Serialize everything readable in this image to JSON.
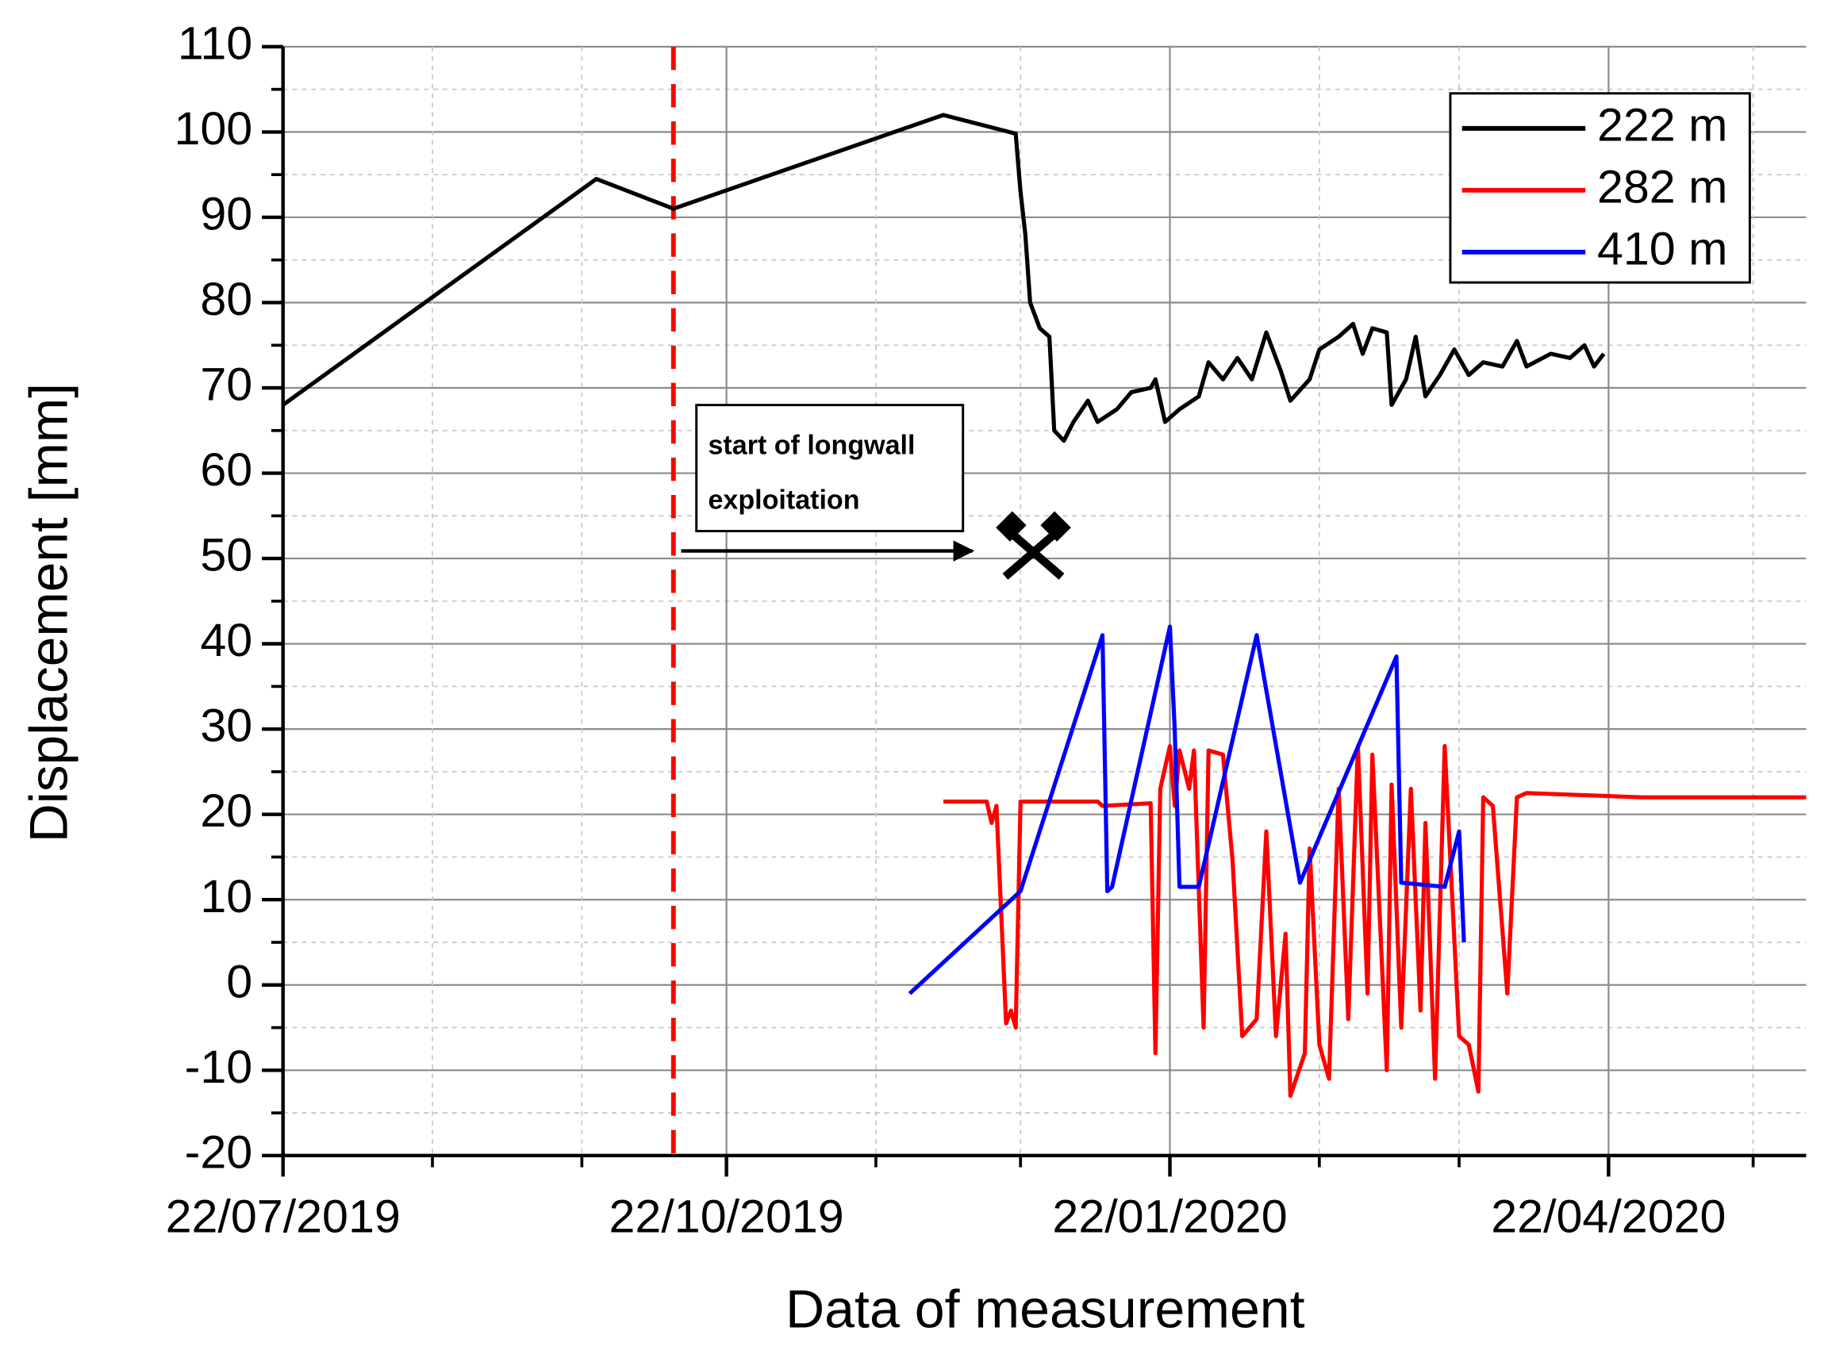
{
  "chart_data": {
    "type": "line",
    "x_label": "Data of measurement",
    "y_label": "Displacement [mm]",
    "xlim": [
      "2019-07-22",
      "2020-06-02"
    ],
    "xticks": [
      {
        "value": "2019-07-22",
        "label": "22/07/2019"
      },
      {
        "value": "2019-10-22",
        "label": "22/10/2019"
      },
      {
        "value": "2020-01-22",
        "label": "22/01/2020"
      },
      {
        "value": "2020-04-22",
        "label": "22/04/2020"
      }
    ],
    "xminor_ticks": [
      "2019-08-22",
      "2019-09-22",
      "2019-11-22",
      "2019-12-22",
      "2020-02-22",
      "2020-03-22",
      "2020-05-22"
    ],
    "ylim": [
      -20,
      110
    ],
    "yticks": [
      -20,
      -10,
      0,
      10,
      20,
      30,
      40,
      50,
      60,
      70,
      80,
      90,
      100,
      110
    ],
    "yminor_ticks": [
      -15,
      -5,
      5,
      15,
      25,
      35,
      45,
      55,
      65,
      75,
      85,
      95,
      105
    ],
    "grid": true,
    "legend": "top-right",
    "vline": {
      "x": "2019-10-11",
      "color": "#ff0000"
    },
    "annotation": {
      "lines": [
        "start of longwall",
        "exploitation"
      ]
    },
    "series": [
      {
        "name": "222 m",
        "color": "#000000",
        "x": [
          "2019-07-22",
          "2019-09-25",
          "2019-10-11",
          "2019-12-06",
          "2019-12-21",
          "2019-12-22",
          "2019-12-23",
          "2019-12-24",
          "2019-12-26",
          "2019-12-28",
          "2019-12-29",
          "2019-12-31",
          "2020-01-02",
          "2020-01-05",
          "2020-01-07",
          "2020-01-11",
          "2020-01-14",
          "2020-01-18",
          "2020-01-19",
          "2020-01-21",
          "2020-01-24",
          "2020-01-28",
          "2020-01-30",
          "2020-02-02",
          "2020-02-05",
          "2020-02-08",
          "2020-02-11",
          "2020-02-14",
          "2020-02-16",
          "2020-02-20",
          "2020-02-22",
          "2020-02-26",
          "2020-02-29",
          "2020-03-02",
          "2020-03-04",
          "2020-03-07",
          "2020-03-08",
          "2020-03-11",
          "2020-03-13",
          "2020-03-15",
          "2020-03-18",
          "2020-03-21",
          "2020-03-24",
          "2020-03-27",
          "2020-03-31",
          "2020-04-03",
          "2020-04-05",
          "2020-04-10",
          "2020-04-14",
          "2020-04-17",
          "2020-04-19",
          "2020-04-21"
        ],
        "values": [
          68,
          94.5,
          91,
          102,
          99.8,
          93,
          88,
          80,
          77,
          76,
          65,
          63.8,
          66,
          68.5,
          66,
          67.5,
          69.5,
          70,
          71,
          66,
          67.5,
          69,
          73,
          71,
          73.5,
          71,
          76.5,
          72,
          68.5,
          71,
          74.5,
          76,
          77.5,
          74,
          77,
          76.5,
          68,
          71,
          76,
          69,
          71.5,
          74.5,
          71.5,
          73,
          72.5,
          75.5,
          72.5,
          74,
          73.5,
          75,
          72.5,
          74
        ]
      },
      {
        "name": "282 m",
        "color": "#ff0000",
        "x": [
          "2019-12-06",
          "2019-12-15",
          "2019-12-16",
          "2019-12-17",
          "2019-12-19",
          "2019-12-20",
          "2019-12-21",
          "2019-12-22",
          "2020-01-07",
          "2020-01-08",
          "2020-01-18",
          "2020-01-19",
          "2020-01-20",
          "2020-01-22",
          "2020-01-23",
          "2020-01-24",
          "2020-01-26",
          "2020-01-27",
          "2020-01-29",
          "2020-01-30",
          "2020-02-02",
          "2020-02-04",
          "2020-02-06",
          "2020-02-09",
          "2020-02-11",
          "2020-02-13",
          "2020-02-15",
          "2020-02-16",
          "2020-02-19",
          "2020-02-20",
          "2020-02-22",
          "2020-02-24",
          "2020-02-26",
          "2020-02-28",
          "2020-03-01",
          "2020-03-03",
          "2020-03-04",
          "2020-03-07",
          "2020-03-08",
          "2020-03-10",
          "2020-03-12",
          "2020-03-14",
          "2020-03-15",
          "2020-03-17",
          "2020-03-19",
          "2020-03-22",
          "2020-03-24",
          "2020-03-26",
          "2020-03-27",
          "2020-03-29",
          "2020-04-01",
          "2020-04-03",
          "2020-04-05",
          "2020-04-29",
          "2020-06-02"
        ],
        "values": [
          21.5,
          21.5,
          19,
          21,
          -4.5,
          -3,
          -5,
          21.5,
          21.5,
          21,
          21.3,
          -8,
          23,
          28,
          21,
          27.5,
          23,
          27.5,
          -5,
          27.5,
          27,
          14.5,
          -6,
          -4,
          18,
          -6,
          6,
          -13,
          -8,
          16,
          -7,
          -11,
          23,
          -4,
          28,
          -1,
          27,
          -10,
          23.5,
          -5,
          23,
          -3,
          19,
          -11,
          28,
          -6,
          -7,
          -12.5,
          22,
          21,
          -1,
          22,
          22.5,
          22,
          22
        ]
      },
      {
        "name": "410 m",
        "color": "#0000ff",
        "x": [
          "2019-11-29",
          "2019-12-22",
          "2020-01-08",
          "2020-01-09",
          "2020-01-10",
          "2020-01-22",
          "2020-01-23",
          "2020-01-24",
          "2020-01-28",
          "2020-02-09",
          "2020-02-18",
          "2020-03-09",
          "2020-03-10",
          "2020-03-19",
          "2020-03-22",
          "2020-03-23"
        ],
        "values": [
          -1,
          11,
          41,
          11,
          11.5,
          42,
          30,
          11.5,
          11.5,
          41,
          12,
          38.5,
          12,
          11.5,
          18,
          5
        ]
      }
    ]
  }
}
